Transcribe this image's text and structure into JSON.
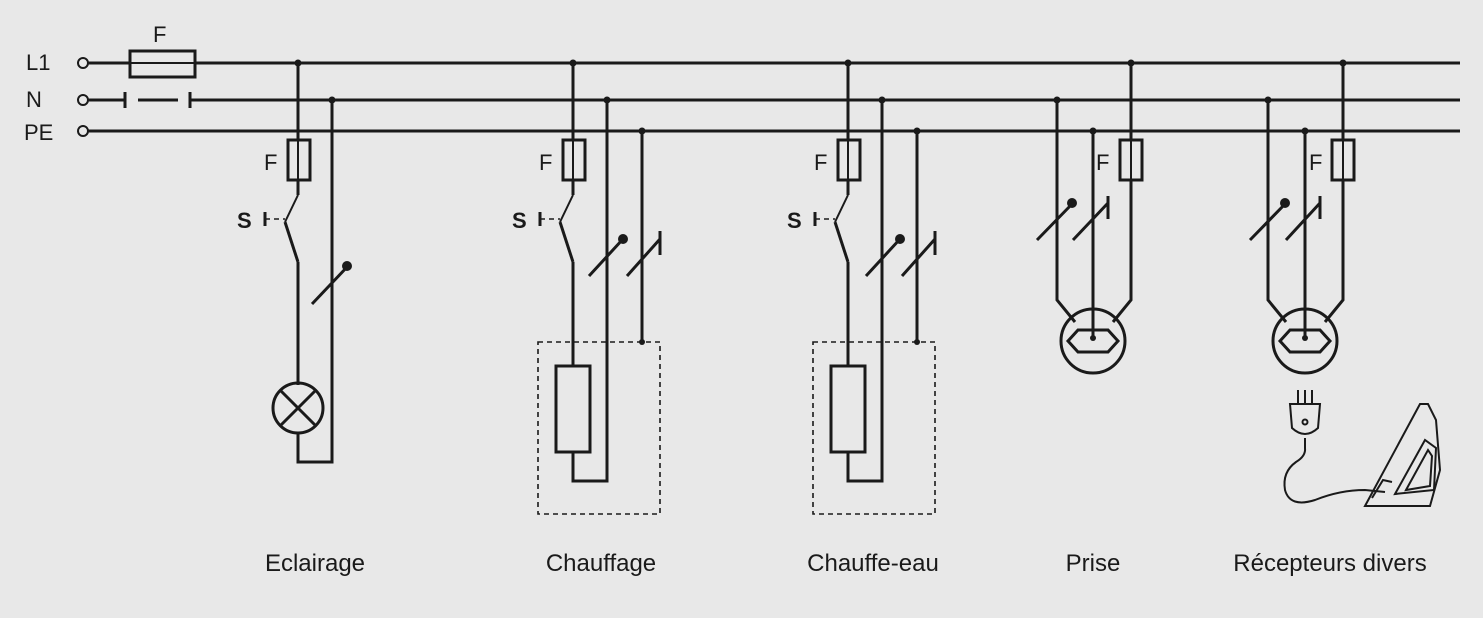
{
  "bus": {
    "l1": "L1",
    "n": "N",
    "pe": "PE",
    "main_fuse": "F"
  },
  "circuits": [
    {
      "caption": "Eclairage",
      "fuse": "F",
      "switch": "S"
    },
    {
      "caption": "Chauffage",
      "fuse": "F",
      "switch": "S"
    },
    {
      "caption": "Chauffe-eau",
      "fuse": "F",
      "switch": "S"
    },
    {
      "caption": "Prise",
      "fuse": "F"
    },
    {
      "caption": "Récepteurs divers",
      "fuse": "F"
    }
  ]
}
